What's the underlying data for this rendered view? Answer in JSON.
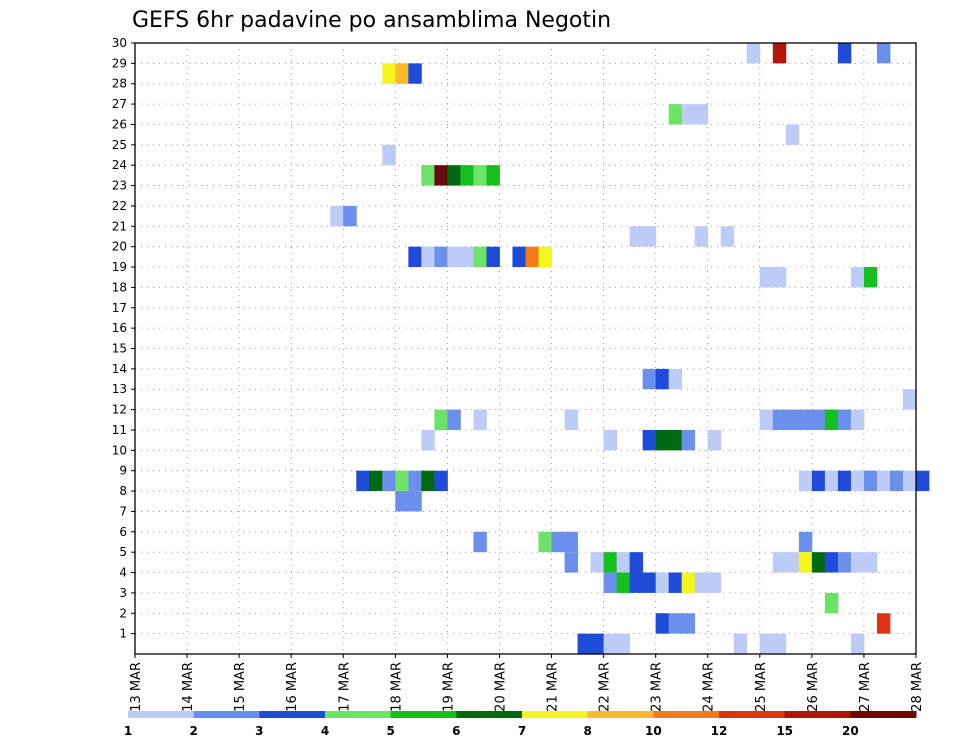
{
  "chart_data": {
    "type": "heatmap",
    "title": "GEFS 6hr padavine po ansamblima Negotin",
    "xlabel": "",
    "ylabel": "",
    "x_range": [
      0,
      15
    ],
    "y_range": [
      0,
      30
    ],
    "x_ticks": [
      "13 MAR",
      "14 MAR",
      "15 MAR",
      "16 MAR",
      "17 MAR",
      "18 MAR",
      "19 MAR",
      "20 MAR",
      "21 MAR",
      "22 MAR",
      "23 MAR",
      "24 MAR",
      "25 MAR",
      "26 MAR",
      "27 MAR",
      "28 MAR"
    ],
    "y_ticks": [
      "1",
      "2",
      "3",
      "4",
      "5",
      "6",
      "7",
      "8",
      "9",
      "10",
      "11",
      "12",
      "13",
      "14",
      "15",
      "16",
      "17",
      "18",
      "19",
      "20",
      "21",
      "22",
      "23",
      "24",
      "25",
      "26",
      "27",
      "28",
      "29",
      "30"
    ],
    "grid": true,
    "legend": {
      "position": "bottom",
      "colors": [
        "#bcccf6",
        "#6a90ec",
        "#1e4cd8",
        "#6ce266",
        "#14c020",
        "#006a12",
        "#f6f61c",
        "#f8ba2c",
        "#f47c16",
        "#e03216",
        "#b4140c",
        "#6a0a0a"
      ],
      "labels": [
        "1",
        "2",
        "3",
        "4",
        "5",
        "6",
        "7",
        "8",
        "10",
        "12",
        "15",
        "20"
      ]
    },
    "cells": [
      {
        "member": 30,
        "days": [
          24.75,
          25.25,
          26.5
        ],
        "levels": [
          1,
          11,
          3
        ]
      },
      {
        "member": 30,
        "days": [
          27.25
        ],
        "levels": [
          2
        ]
      },
      {
        "member": 29,
        "days": [
          17.75,
          18.0,
          18.25
        ],
        "levels": [
          7,
          8,
          3
        ]
      },
      {
        "member": 27,
        "days": [
          23.25,
          23.5,
          23.75
        ],
        "levels": [
          4,
          1,
          1
        ]
      },
      {
        "member": 26,
        "days": [
          25.5
        ],
        "levels": [
          1
        ]
      },
      {
        "member": 25,
        "days": [
          17.75
        ],
        "levels": [
          1
        ]
      },
      {
        "member": 24,
        "days": [
          18.5,
          18.75,
          19.0,
          19.25,
          19.5,
          19.75
        ],
        "levels": [
          4,
          12,
          6,
          5,
          4,
          5
        ]
      },
      {
        "member": 22,
        "days": [
          16.75,
          17.0
        ],
        "levels": [
          1,
          2
        ]
      },
      {
        "member": 21,
        "days": [
          22.5,
          22.75,
          23.75,
          24.25
        ],
        "levels": [
          1,
          1,
          1,
          1
        ]
      },
      {
        "member": 20,
        "days": [
          18.25,
          18.5,
          18.75,
          19.0,
          19.25,
          19.5,
          19.75
        ],
        "levels": [
          3,
          1,
          2,
          1,
          1,
          4,
          3
        ]
      },
      {
        "member": 20,
        "days": [
          20.25,
          20.5,
          20.75
        ],
        "levels": [
          3,
          9,
          7
        ]
      },
      {
        "member": 19,
        "days": [
          25.0,
          25.25,
          26.75,
          27.0
        ],
        "levels": [
          1,
          1,
          1,
          5
        ]
      },
      {
        "member": 14,
        "days": [
          22.75,
          23.0,
          23.25
        ],
        "levels": [
          2,
          3,
          1
        ]
      },
      {
        "member": 13,
        "days": [
          27.75
        ],
        "levels": [
          1
        ]
      },
      {
        "member": 12,
        "days": [
          18.75,
          19.0,
          19.5
        ],
        "levels": [
          4,
          2,
          1
        ]
      },
      {
        "member": 12,
        "days": [
          21.25
        ],
        "levels": [
          1
        ]
      },
      {
        "member": 12,
        "days": [
          25.0,
          25.25,
          25.5,
          25.75,
          26.0,
          26.25,
          26.5,
          26.75
        ],
        "levels": [
          1,
          2,
          2,
          2,
          2,
          5,
          2,
          1
        ]
      },
      {
        "member": 11,
        "days": [
          18.5
        ],
        "levels": [
          1
        ]
      },
      {
        "member": 11,
        "days": [
          22.0
        ],
        "levels": [
          1
        ]
      },
      {
        "member": 11,
        "days": [
          22.75,
          23.0,
          23.25,
          23.5
        ],
        "levels": [
          3,
          6,
          6,
          2
        ]
      },
      {
        "member": 11,
        "days": [
          24.0
        ],
        "levels": [
          1
        ]
      },
      {
        "member": 9,
        "days": [
          17.25,
          17.5,
          17.75,
          18.0,
          18.25,
          18.5,
          18.75
        ],
        "levels": [
          3,
          6,
          2,
          4,
          2,
          6,
          3
        ]
      },
      {
        "member": 9,
        "days": [
          25.75,
          26.0,
          26.25,
          26.5,
          26.75,
          27.0,
          27.25,
          27.5,
          27.75,
          28.0
        ],
        "levels": [
          1,
          3,
          1,
          3,
          1,
          2,
          1,
          2,
          1,
          3
        ]
      },
      {
        "member": 8,
        "days": [
          18.0,
          18.25
        ],
        "levels": [
          2,
          2
        ]
      },
      {
        "member": 6,
        "days": [
          19.5
        ],
        "levels": [
          2
        ]
      },
      {
        "member": 6,
        "days": [
          20.75,
          21.0,
          21.25
        ],
        "levels": [
          4,
          2,
          2
        ]
      },
      {
        "member": 6,
        "days": [
          25.75
        ],
        "levels": [
          2
        ]
      },
      {
        "member": 5,
        "days": [
          21.25
        ],
        "levels": [
          2
        ]
      },
      {
        "member": 5,
        "days": [
          21.75
        ],
        "levels": [
          1
        ]
      },
      {
        "member": 5,
        "days": [
          22.0,
          22.25,
          22.5
        ],
        "levels": [
          5,
          1,
          3
        ]
      },
      {
        "member": 5,
        "days": [
          25.25,
          25.5,
          25.75,
          26.0,
          26.25,
          26.5,
          26.75,
          27.0
        ],
        "levels": [
          1,
          1,
          7,
          6,
          3,
          2,
          1,
          1
        ]
      },
      {
        "member": 4,
        "days": [
          22.0,
          22.25,
          22.5,
          22.75,
          23.0
        ],
        "levels": [
          2,
          5,
          3,
          3,
          1
        ]
      },
      {
        "member": 4,
        "days": [
          23.25,
          23.5,
          23.75,
          24.0
        ],
        "levels": [
          3,
          7,
          1,
          1
        ]
      },
      {
        "member": 3,
        "days": [
          26.25
        ],
        "levels": [
          4
        ]
      },
      {
        "member": 2,
        "days": [
          23.0,
          23.25,
          23.5
        ],
        "levels": [
          3,
          2,
          2
        ]
      },
      {
        "member": 2,
        "days": [
          27.25
        ],
        "levels": [
          10
        ]
      },
      {
        "member": 1,
        "days": [
          21.5,
          21.75,
          22.0,
          22.25
        ],
        "levels": [
          3,
          3,
          1,
          1
        ]
      },
      {
        "member": 1,
        "days": [
          24.5
        ],
        "levels": [
          1
        ]
      },
      {
        "member": 1,
        "days": [
          25.0,
          25.25
        ],
        "levels": [
          1,
          1
        ]
      },
      {
        "member": 1,
        "days": [
          26.75
        ],
        "levels": [
          1
        ]
      }
    ]
  }
}
